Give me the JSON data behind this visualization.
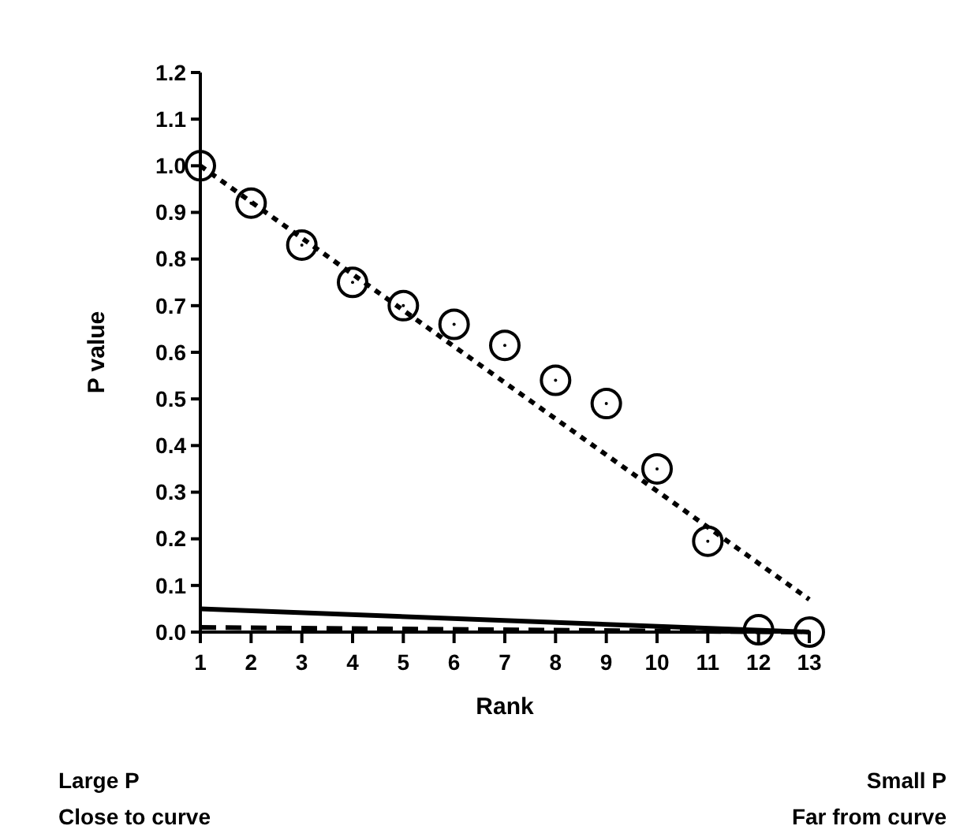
{
  "chart_data": {
    "type": "scatter",
    "xlabel": "Rank",
    "ylabel": "P value",
    "annotations": [
      "Large P",
      "Close to curve",
      "Small P",
      "Far from curve"
    ],
    "xlim": [
      1,
      13
    ],
    "xticks": [
      1,
      2,
      3,
      4,
      5,
      6,
      7,
      8,
      9,
      10,
      11,
      12,
      13
    ],
    "ylim": [
      0,
      1.2
    ],
    "yticks": [
      {
        "value": 0,
        "label": "0.0"
      },
      {
        "value": 0.1,
        "label": "0.1"
      },
      {
        "value": 0.2,
        "label": "0.2"
      },
      {
        "value": 0.3,
        "label": "0.3"
      },
      {
        "value": 0.4,
        "label": "0.4"
      },
      {
        "value": 0.5,
        "label": "0.5"
      },
      {
        "value": 0.6,
        "label": "0.6"
      },
      {
        "value": 0.7,
        "label": "0.7"
      },
      {
        "value": 0.8,
        "label": "0.8"
      },
      {
        "value": 0.9,
        "label": "0.9"
      },
      {
        "value": 1,
        "label": "1.0"
      },
      {
        "value": 1.1,
        "label": "1.1"
      },
      {
        "value": 1.2,
        "label": "1.2"
      }
    ],
    "grid": false,
    "marker": "circle",
    "series": [
      {
        "color": "#000000",
        "x": [
          1,
          2,
          3,
          4,
          5,
          6,
          7,
          8,
          9,
          10,
          11,
          12,
          13
        ],
        "values": [
          1.0,
          0.92,
          0.83,
          0.75,
          0.7,
          0.66,
          0.615,
          0.54,
          0.49,
          0.35,
          0.195,
          0.005,
          0.0
        ]
      },
      {
        "type": "line",
        "color": "#000000",
        "line_style": "dotted",
        "marker": "none",
        "x": [
          1,
          13
        ],
        "values": [
          1.0,
          0.07
        ]
      },
      {
        "type": "line",
        "color": "#000000",
        "line_style": "solid",
        "marker": "none",
        "x": [
          1,
          13
        ],
        "values": [
          0.05,
          0.0
        ]
      },
      {
        "type": "line",
        "color": "#000000",
        "line_style": "dashed",
        "marker": "none",
        "x": [
          1,
          13
        ],
        "values": [
          0.01,
          0.0
        ]
      }
    ]
  }
}
